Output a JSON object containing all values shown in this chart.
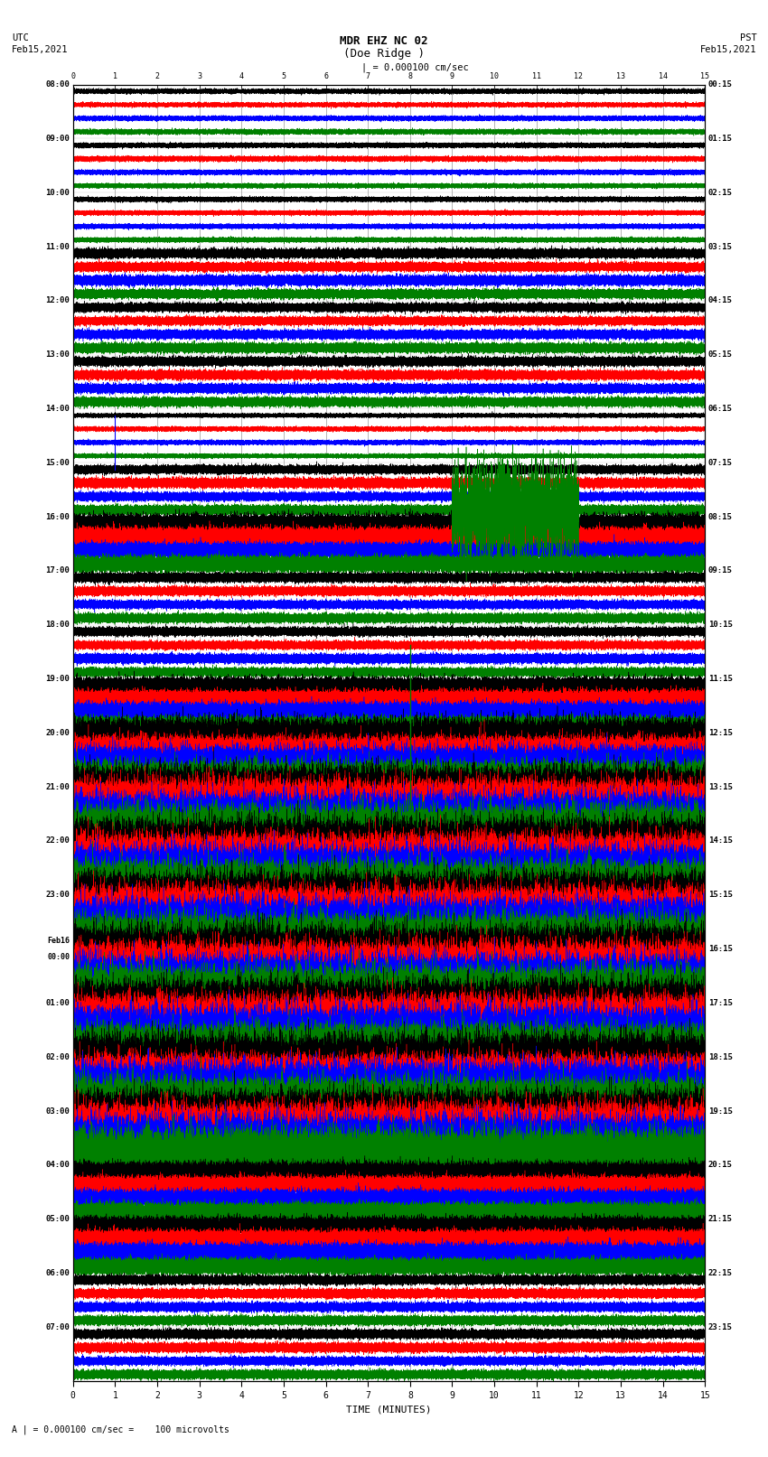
{
  "title_line1": "MDR EHZ NC 02",
  "title_line2": "(Doe Ridge )",
  "scale_label": "| = 0.000100 cm/sec",
  "bottom_label": "A | = 0.000100 cm/sec =    100 microvolts",
  "xlabel": "TIME (MINUTES)",
  "left_times": [
    "08:00",
    "09:00",
    "10:00",
    "11:00",
    "12:00",
    "13:00",
    "14:00",
    "15:00",
    "16:00",
    "17:00",
    "18:00",
    "19:00",
    "20:00",
    "21:00",
    "22:00",
    "23:00",
    "Feb16\n00:00",
    "01:00",
    "02:00",
    "03:00",
    "04:00",
    "05:00",
    "06:00",
    "07:00"
  ],
  "right_times": [
    "00:15",
    "01:15",
    "02:15",
    "03:15",
    "04:15",
    "05:15",
    "06:15",
    "07:15",
    "08:15",
    "09:15",
    "10:15",
    "11:15",
    "12:15",
    "13:15",
    "14:15",
    "15:15",
    "16:15",
    "17:15",
    "18:15",
    "19:15",
    "20:15",
    "21:15",
    "22:15",
    "23:15"
  ],
  "num_rows": 24,
  "traces_per_row": 4,
  "colors": [
    "black",
    "red",
    "blue",
    "green"
  ],
  "bg_color": "white",
  "grid_color": "#999999",
  "minutes": 15,
  "row_amplitudes": [
    0.03,
    0.03,
    0.08,
    0.12,
    0.15,
    0.12,
    0.08,
    0.25,
    0.35,
    0.2,
    0.22,
    0.45,
    0.85,
    1.0,
    1.0,
    1.0,
    1.0,
    1.0,
    1.0,
    0.95,
    0.55,
    0.35,
    0.25,
    0.18
  ]
}
